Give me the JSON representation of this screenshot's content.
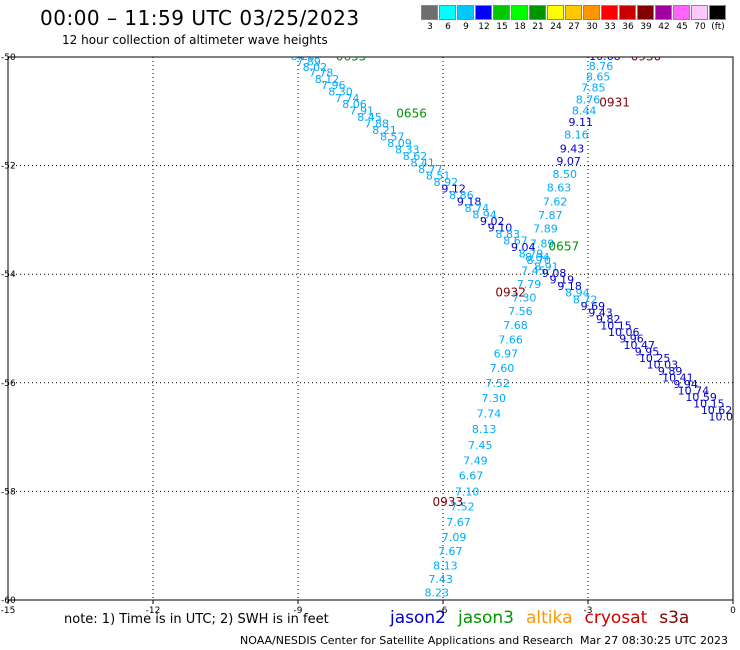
{
  "header": {
    "title": "00:00 – 11:59 UTC 03/25/2023",
    "subtitle": "12 hour collection of altimeter wave heights"
  },
  "color_scale": {
    "labels": [
      "3",
      "6",
      "9",
      "12",
      "15",
      "18",
      "21",
      "24",
      "27",
      "30",
      "33",
      "36",
      "39",
      "42",
      "45",
      "70",
      "(ft)"
    ],
    "colors": [
      "#6e6e6e",
      "#00ffff",
      "#00c8ff",
      "#0000ff",
      "#00c800",
      "#00ff00",
      "#009600",
      "#ffff00",
      "#ffc800",
      "#ff9600",
      "#ff0000",
      "#c80000",
      "#800000",
      "#a000a0",
      "#ff64ff",
      "#ffc8ff",
      "#000000"
    ]
  },
  "footer": {
    "note": "note: 1) Time is in UTC; 2) SWH is in feet",
    "credit": "NOAA/NESDIS Center for Satellite Applications and Research",
    "timestamp": "Mar 27 08:30:25 UTC 2023"
  },
  "satellites": [
    {
      "name": "jason2",
      "color": "#0000cc"
    },
    {
      "name": "jason3",
      "color": "#009600"
    },
    {
      "name": "altika",
      "color": "#ff9600"
    },
    {
      "name": "cryosat",
      "color": "#c80000"
    },
    {
      "name": "s3a",
      "color": "#800000"
    }
  ],
  "chart_data": {
    "type": "scatter",
    "title": "00:00 – 11:59 UTC 03/25/2023",
    "subtitle": "12 hour collection of altimeter wave heights",
    "xlim": [
      -15,
      0
    ],
    "ylim": [
      -60,
      -50
    ],
    "xticks": [
      -15,
      -12,
      -9,
      -6,
      -3,
      0
    ],
    "yticks": [
      -50,
      -52,
      -54,
      -56,
      -58,
      -60
    ],
    "grid": true,
    "unit": "ft",
    "tracks": [
      {
        "label_color": "#800000",
        "time_labels": [
          {
            "text": "0930",
            "lon": -1.8,
            "lat": -50.0
          },
          {
            "text": "0931",
            "lon": -2.45,
            "lat": -50.85
          },
          {
            "text": "0932",
            "lon": -4.6,
            "lat": -54.35
          },
          {
            "text": "0933",
            "lon": -5.9,
            "lat": -58.2
          }
        ],
        "points": [
          {
            "lon": -2.65,
            "lat": -50.0,
            "swh": "10.68",
            "color": "#0000cc"
          },
          {
            "lon": -2.73,
            "lat": -50.18,
            "swh": "8.76",
            "color": "#00aaff"
          },
          {
            "lon": -2.79,
            "lat": -50.38,
            "swh": "8.65",
            "color": "#00aaff"
          },
          {
            "lon": -2.89,
            "lat": -50.58,
            "swh": "7.85",
            "color": "#00aaff"
          },
          {
            "lon": -3.0,
            "lat": -50.8,
            "swh": "8.76",
            "color": "#00aaff"
          },
          {
            "lon": -3.08,
            "lat": -51.0,
            "swh": "8.44",
            "color": "#00aaff"
          },
          {
            "lon": -3.15,
            "lat": -51.22,
            "swh": "9.11",
            "color": "#0000cc"
          },
          {
            "lon": -3.24,
            "lat": -51.45,
            "swh": "8.16",
            "color": "#00aaff"
          },
          {
            "lon": -3.33,
            "lat": -51.7,
            "swh": "9.43",
            "color": "#0000cc"
          },
          {
            "lon": -3.4,
            "lat": -51.93,
            "swh": "9.07",
            "color": "#0000cc"
          },
          {
            "lon": -3.48,
            "lat": -52.17,
            "swh": "8.50",
            "color": "#00aaff"
          },
          {
            "lon": -3.6,
            "lat": -52.42,
            "swh": "8.63",
            "color": "#00aaff"
          },
          {
            "lon": -3.68,
            "lat": -52.68,
            "swh": "7.62",
            "color": "#00aaff"
          },
          {
            "lon": -3.78,
            "lat": -52.93,
            "swh": "7.87",
            "color": "#00aaff"
          },
          {
            "lon": -3.88,
            "lat": -53.18,
            "swh": "7.89",
            "color": "#00aaff"
          },
          {
            "lon": -3.95,
            "lat": -53.45,
            "swh": "7.89",
            "color": "#00aaff"
          },
          {
            "lon": -4.05,
            "lat": -53.7,
            "swh": "8.04",
            "color": "#00aaff"
          },
          {
            "lon": -4.13,
            "lat": -53.95,
            "swh": "7.45",
            "color": "#00aaff"
          },
          {
            "lon": -4.22,
            "lat": -54.2,
            "swh": "7.79",
            "color": "#00aaff"
          },
          {
            "lon": -4.32,
            "lat": -54.45,
            "swh": "7.30",
            "color": "#00aaff"
          },
          {
            "lon": -4.4,
            "lat": -54.7,
            "swh": "7.56",
            "color": "#00aaff"
          },
          {
            "lon": -4.5,
            "lat": -54.95,
            "swh": "7.68",
            "color": "#00aaff"
          },
          {
            "lon": -4.6,
            "lat": -55.22,
            "swh": "7.66",
            "color": "#00aaff"
          },
          {
            "lon": -4.7,
            "lat": -55.48,
            "swh": "6.97",
            "color": "#00aaff"
          },
          {
            "lon": -4.78,
            "lat": -55.75,
            "swh": "7.60",
            "color": "#00aaff"
          },
          {
            "lon": -4.87,
            "lat": -56.02,
            "swh": "7.52",
            "color": "#00aaff"
          },
          {
            "lon": -4.95,
            "lat": -56.3,
            "swh": "7.30",
            "color": "#00aaff"
          },
          {
            "lon": -5.05,
            "lat": -56.58,
            "swh": "7.74",
            "color": "#00aaff"
          },
          {
            "lon": -5.15,
            "lat": -56.87,
            "swh": "8.13",
            "color": "#00aaff"
          },
          {
            "lon": -5.23,
            "lat": -57.16,
            "swh": "7.45",
            "color": "#00aaff"
          },
          {
            "lon": -5.33,
            "lat": -57.45,
            "swh": "7.49",
            "color": "#00aaff"
          },
          {
            "lon": -5.42,
            "lat": -57.73,
            "swh": "6.67",
            "color": "#00aaff"
          },
          {
            "lon": -5.5,
            "lat": -58.02,
            "swh": "7.10",
            "color": "#00aaff"
          },
          {
            "lon": -5.6,
            "lat": -58.3,
            "swh": "7.52",
            "color": "#00aaff"
          },
          {
            "lon": -5.68,
            "lat": -58.58,
            "swh": "7.67",
            "color": "#00aaff"
          },
          {
            "lon": -5.77,
            "lat": -58.86,
            "swh": "7.09",
            "color": "#00aaff"
          },
          {
            "lon": -5.85,
            "lat": -59.12,
            "swh": "7.67",
            "color": "#00aaff"
          },
          {
            "lon": -5.95,
            "lat": -59.38,
            "swh": "8.13",
            "color": "#00aaff"
          },
          {
            "lon": -6.05,
            "lat": -59.63,
            "swh": "7.43",
            "color": "#00aaff"
          },
          {
            "lon": -6.13,
            "lat": -59.88,
            "swh": "8.23",
            "color": "#00aaff"
          },
          {
            "lon": -6.22,
            "lat": -60.13,
            "swh": "8.06",
            "color": "#00aaff"
          },
          {
            "lon": -6.3,
            "lat": -60.38,
            "swh": "7.37",
            "color": "#00aaff"
          },
          {
            "lon": -6.4,
            "lat": -60.63,
            "swh": "7.70",
            "color": "#00aaff"
          },
          {
            "lon": -6.48,
            "lat": -60.88,
            "swh": "7.23",
            "color": "#00aaff"
          }
        ]
      },
      {
        "label_color": "#009600",
        "time_labels": [
          {
            "text": "0655",
            "lon": -7.9,
            "lat": -50.0
          },
          {
            "text": "0656",
            "lon": -6.65,
            "lat": -51.05
          },
          {
            "text": "0657",
            "lon": -3.5,
            "lat": -53.5
          }
        ],
        "points": [
          {
            "lon": -8.9,
            "lat": -50.0,
            "swh": "8.29",
            "color": "#00aaff"
          },
          {
            "lon": -8.78,
            "lat": -50.1,
            "swh": "7.89",
            "color": "#00aaff"
          },
          {
            "lon": -8.65,
            "lat": -50.2,
            "swh": "8.02",
            "color": "#00aaff"
          },
          {
            "lon": -8.52,
            "lat": -50.3,
            "swh": "7.78",
            "color": "#00aaff"
          },
          {
            "lon": -8.4,
            "lat": -50.42,
            "swh": "8.12",
            "color": "#00aaff"
          },
          {
            "lon": -8.27,
            "lat": -50.53,
            "swh": "7.96",
            "color": "#00aaff"
          },
          {
            "lon": -8.12,
            "lat": -50.65,
            "swh": "8.30",
            "color": "#00aaff"
          },
          {
            "lon": -7.98,
            "lat": -50.77,
            "swh": "7.74",
            "color": "#00aaff"
          },
          {
            "lon": -7.83,
            "lat": -50.88,
            "swh": "8.06",
            "color": "#00aaff"
          },
          {
            "lon": -7.68,
            "lat": -51.0,
            "swh": "7.91",
            "color": "#00aaff"
          },
          {
            "lon": -7.52,
            "lat": -51.12,
            "swh": "8.45",
            "color": "#00aaff"
          },
          {
            "lon": -7.37,
            "lat": -51.24,
            "swh": "7.88",
            "color": "#00aaff"
          },
          {
            "lon": -7.21,
            "lat": -51.36,
            "swh": "8.21",
            "color": "#00aaff"
          },
          {
            "lon": -7.05,
            "lat": -51.48,
            "swh": "8.57",
            "color": "#00aaff"
          },
          {
            "lon": -6.9,
            "lat": -51.6,
            "swh": "8.09",
            "color": "#00aaff"
          },
          {
            "lon": -6.74,
            "lat": -51.72,
            "swh": "8.33",
            "color": "#00aaff"
          },
          {
            "lon": -6.58,
            "lat": -51.84,
            "swh": "8.62",
            "color": "#00aaff"
          },
          {
            "lon": -6.42,
            "lat": -51.96,
            "swh": "8.41",
            "color": "#00aaff"
          },
          {
            "lon": -6.26,
            "lat": -52.08,
            "swh": "8.77",
            "color": "#00aaff"
          },
          {
            "lon": -6.1,
            "lat": -52.2,
            "swh": "8.51",
            "color": "#00aaff"
          },
          {
            "lon": -5.94,
            "lat": -52.32,
            "swh": "8.92",
            "color": "#00aaff"
          },
          {
            "lon": -5.78,
            "lat": -52.44,
            "swh": "9.12",
            "color": "#0000cc"
          },
          {
            "lon": -5.62,
            "lat": -52.56,
            "swh": "8.86",
            "color": "#00aaff"
          },
          {
            "lon": -5.46,
            "lat": -52.68,
            "swh": "9.18",
            "color": "#0000cc"
          },
          {
            "lon": -5.3,
            "lat": -52.8,
            "swh": "8.74",
            "color": "#00aaff"
          },
          {
            "lon": -5.14,
            "lat": -52.92,
            "swh": "8.94",
            "color": "#00aaff"
          },
          {
            "lon": -4.98,
            "lat": -53.04,
            "swh": "9.02",
            "color": "#0000cc"
          },
          {
            "lon": -4.82,
            "lat": -53.16,
            "swh": "9.10",
            "color": "#0000cc"
          },
          {
            "lon": -4.66,
            "lat": -53.28,
            "swh": "8.83",
            "color": "#00aaff"
          },
          {
            "lon": -4.5,
            "lat": -53.4,
            "swh": "8.67",
            "color": "#00aaff"
          },
          {
            "lon": -4.34,
            "lat": -53.52,
            "swh": "9.04",
            "color": "#0000cc"
          },
          {
            "lon": -4.18,
            "lat": -53.64,
            "swh": "8.79",
            "color": "#00aaff"
          },
          {
            "lon": -4.02,
            "lat": -53.76,
            "swh": "8.70",
            "color": "#00aaff"
          },
          {
            "lon": -3.86,
            "lat": -53.88,
            "swh": "8.91",
            "color": "#00aaff"
          },
          {
            "lon": -3.7,
            "lat": -54.0,
            "swh": "9.08",
            "color": "#0000cc"
          },
          {
            "lon": -3.54,
            "lat": -54.12,
            "swh": "9.19",
            "color": "#0000cc"
          },
          {
            "lon": -3.38,
            "lat": -54.24,
            "swh": "9.18",
            "color": "#0000cc"
          },
          {
            "lon": -3.22,
            "lat": -54.36,
            "swh": "8.94",
            "color": "#00aaff"
          },
          {
            "lon": -3.06,
            "lat": -54.48,
            "swh": "8.72",
            "color": "#00aaff"
          },
          {
            "lon": -2.9,
            "lat": -54.6,
            "swh": "9.69",
            "color": "#0000cc"
          },
          {
            "lon": -2.74,
            "lat": -54.72,
            "swh": "9.43",
            "color": "#0000cc"
          },
          {
            "lon": -2.58,
            "lat": -54.84,
            "swh": "9.82",
            "color": "#0000cc"
          },
          {
            "lon": -2.42,
            "lat": -54.96,
            "swh": "10.15",
            "color": "#0000cc"
          },
          {
            "lon": -2.26,
            "lat": -55.08,
            "swh": "10.06",
            "color": "#0000cc"
          },
          {
            "lon": -2.1,
            "lat": -55.2,
            "swh": "9.96",
            "color": "#0000cc"
          },
          {
            "lon": -1.94,
            "lat": -55.32,
            "swh": "10.47",
            "color": "#0000cc"
          },
          {
            "lon": -1.78,
            "lat": -55.44,
            "swh": "9.95",
            "color": "#0000cc"
          },
          {
            "lon": -1.62,
            "lat": -55.56,
            "swh": "10.25",
            "color": "#0000cc"
          },
          {
            "lon": -1.46,
            "lat": -55.68,
            "swh": "10.03",
            "color": "#0000cc"
          },
          {
            "lon": -1.3,
            "lat": -55.8,
            "swh": "9.89",
            "color": "#0000cc"
          },
          {
            "lon": -1.14,
            "lat": -55.92,
            "swh": "10.41",
            "color": "#0000cc"
          },
          {
            "lon": -0.98,
            "lat": -56.04,
            "swh": "9.94",
            "color": "#0000cc"
          },
          {
            "lon": -0.82,
            "lat": -56.16,
            "swh": "10.74",
            "color": "#0000cc"
          },
          {
            "lon": -0.66,
            "lat": -56.28,
            "swh": "10.59",
            "color": "#0000cc"
          },
          {
            "lon": -0.5,
            "lat": -56.4,
            "swh": "10.15",
            "color": "#0000cc"
          },
          {
            "lon": -0.34,
            "lat": -56.52,
            "swh": "10.62",
            "color": "#0000cc"
          },
          {
            "lon": -0.18,
            "lat": -56.64,
            "swh": "10.09",
            "color": "#0000cc"
          }
        ]
      }
    ]
  }
}
